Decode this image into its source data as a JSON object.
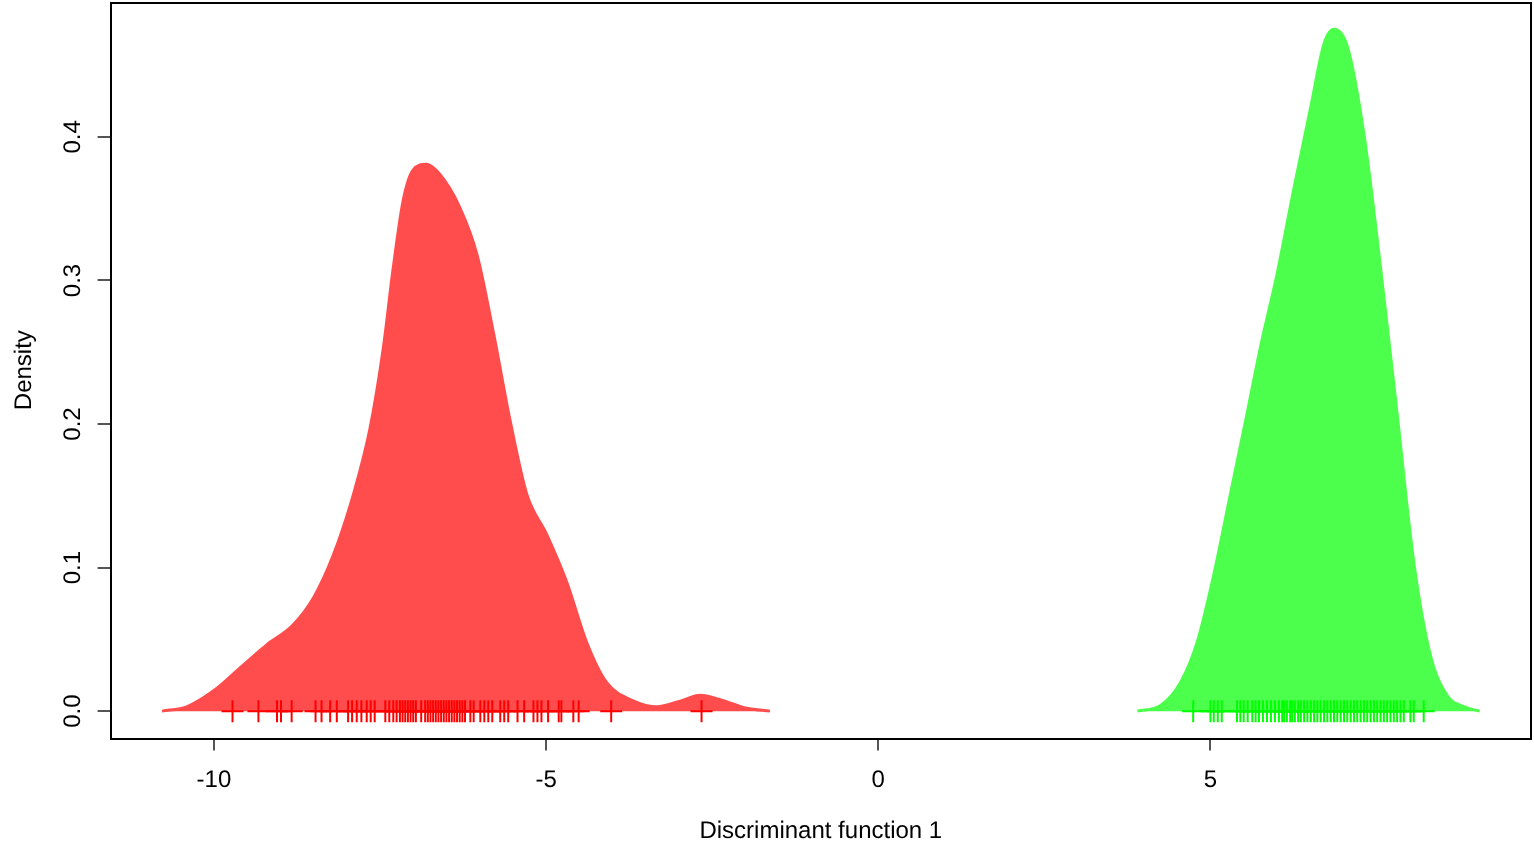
{
  "chart_data": {
    "type": "area",
    "xlabel": "Discriminant function 1",
    "ylabel": "Density",
    "xlim": [
      -11.57,
      9.84
    ],
    "xticks": [
      -10,
      -5,
      0,
      5
    ],
    "ylim": [
      -0.019,
      0.494
    ],
    "yticks": [
      {
        "value": 0,
        "label": "0.0"
      },
      0.1,
      0.2,
      0.3,
      0.4
    ],
    "legend": false,
    "grid": false,
    "series": [
      {
        "color": "#ff4d4d",
        "x": [
          -10.78,
          -10.41,
          -10.01,
          -9.61,
          -9.21,
          -8.81,
          -8.5,
          -8.2,
          -7.9,
          -7.65,
          -7.45,
          -7.3,
          -7.15,
          -7.0,
          -6.8,
          -6.6,
          -6.3,
          -6.04,
          -5.79,
          -5.54,
          -5.29,
          -4.99,
          -4.69,
          -4.39,
          -4.09,
          -3.68,
          -3.33,
          -2.98,
          -2.68,
          -2.38,
          -1.98,
          -1.63
        ],
        "values": [
          0,
          0.003,
          0.014,
          0.03,
          0.046,
          0.06,
          0.079,
          0.109,
          0.151,
          0.197,
          0.253,
          0.309,
          0.356,
          0.377,
          0.381,
          0.374,
          0.351,
          0.318,
          0.263,
          0.202,
          0.151,
          0.123,
          0.09,
          0.048,
          0.02,
          0.007,
          0.003,
          0.007,
          0.011,
          0.008,
          0.002,
          0
        ]
      },
      {
        "type": "scatter",
        "marker": "cross",
        "color": "#ff0000",
        "x": [
          -9.72,
          -9.33,
          -9.05,
          -8.99,
          -8.83,
          -8.47,
          -8.38,
          -8.25,
          -8.15,
          -7.98,
          -7.92,
          -7.85,
          -7.78,
          -7.7,
          -7.64,
          -7.58,
          -7.42,
          -7.36,
          -7.3,
          -7.25,
          -7.2,
          -7.16,
          -7.12,
          -7.08,
          -7.04,
          -7.0,
          -6.96,
          -6.88,
          -6.82,
          -6.78,
          -6.74,
          -6.7,
          -6.66,
          -6.62,
          -6.58,
          -6.54,
          -6.5,
          -6.46,
          -6.42,
          -6.38,
          -6.34,
          -6.3,
          -6.26,
          -6.22,
          -6.14,
          -6.09,
          -5.99,
          -5.93,
          -5.87,
          -5.81,
          -5.69,
          -5.63,
          -5.57,
          -5.43,
          -5.33,
          -5.19,
          -5.13,
          -5.07,
          -4.97,
          -4.81,
          -4.77,
          -4.59,
          -4.51,
          -4.02,
          -2.66
        ],
        "values": [
          0,
          0,
          0,
          0,
          0,
          0,
          0,
          0,
          0,
          0,
          0,
          0,
          0,
          0,
          0,
          0,
          0,
          0,
          0,
          0,
          0,
          0,
          0,
          0,
          0,
          0,
          0,
          0,
          0,
          0,
          0,
          0,
          0,
          0,
          0,
          0,
          0,
          0,
          0,
          0,
          0,
          0,
          0,
          0,
          0,
          0,
          0,
          0,
          0,
          0,
          0,
          0,
          0,
          0,
          0,
          0,
          0,
          0,
          0,
          0,
          0,
          0,
          0,
          0,
          0
        ]
      },
      {
        "color": "#4dff4d",
        "x": [
          3.9,
          4.25,
          4.55,
          4.8,
          5.05,
          5.3,
          5.55,
          5.75,
          6.0,
          6.26,
          6.51,
          6.71,
          6.86,
          7.06,
          7.31,
          7.56,
          7.81,
          8.06,
          8.31,
          8.56,
          8.82,
          9.05
        ],
        "values": [
          0,
          0.004,
          0.02,
          0.048,
          0.095,
          0.151,
          0.207,
          0.253,
          0.304,
          0.365,
          0.421,
          0.465,
          0.475,
          0.463,
          0.402,
          0.309,
          0.207,
          0.104,
          0.039,
          0.011,
          0.003,
          0
        ]
      },
      {
        "type": "scatter",
        "marker": "cross",
        "color": "#00ff00",
        "x": [
          4.74,
          5.0,
          5.05,
          5.11,
          5.17,
          5.4,
          5.45,
          5.5,
          5.56,
          5.63,
          5.68,
          5.73,
          5.79,
          5.85,
          5.91,
          5.97,
          6.03,
          6.08,
          6.11,
          6.15,
          6.2,
          6.23,
          6.27,
          6.32,
          6.36,
          6.41,
          6.46,
          6.51,
          6.56,
          6.61,
          6.66,
          6.71,
          6.76,
          6.81,
          6.86,
          6.91,
          6.96,
          7.01,
          7.06,
          7.11,
          7.16,
          7.21,
          7.26,
          7.31,
          7.36,
          7.41,
          7.46,
          7.51,
          7.56,
          7.61,
          7.66,
          7.71,
          7.76,
          7.81,
          7.86,
          7.91,
          8.01,
          8.06,
          8.21
        ],
        "values": [
          0,
          0,
          0,
          0,
          0,
          0,
          0,
          0,
          0,
          0,
          0,
          0,
          0,
          0,
          0,
          0,
          0,
          0,
          0,
          0,
          0,
          0,
          0,
          0,
          0,
          0,
          0,
          0,
          0,
          0,
          0,
          0,
          0,
          0,
          0,
          0,
          0,
          0,
          0,
          0,
          0,
          0,
          0,
          0,
          0,
          0,
          0,
          0,
          0,
          0,
          0,
          0,
          0,
          0,
          0,
          0,
          0,
          0,
          0
        ]
      }
    ]
  }
}
